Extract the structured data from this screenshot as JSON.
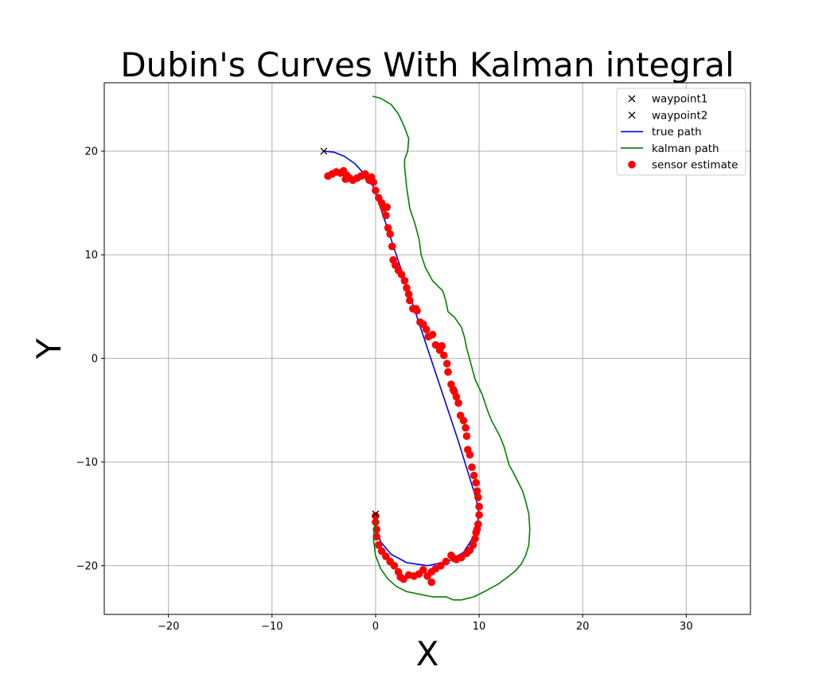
{
  "chart_data": {
    "type": "line",
    "title": "Dubin's Curves With Kalman integral",
    "xlabel": "X",
    "ylabel": "Y",
    "xlim": [
      -26.2,
      36.2
    ],
    "ylim": [
      -24.7,
      26.6
    ],
    "xticks": [
      -20,
      -10,
      0,
      10,
      20,
      30
    ],
    "yticks": [
      -20,
      -10,
      0,
      10,
      20
    ],
    "xtick_labels": [
      "−20",
      "−10",
      "0",
      "10",
      "20",
      "30"
    ],
    "ytick_labels": [
      "−20",
      "−10",
      "0",
      "10",
      "20"
    ],
    "grid": true,
    "legend_position": "top-right",
    "colors": {
      "waypoint": "#000000",
      "true_path": "#0000ff",
      "kalman_path": "#008000",
      "sensor": "#ff0000",
      "grid": "#b0b0b0"
    },
    "legend": [
      {
        "label": "waypoint1",
        "marker": "x"
      },
      {
        "label": "waypoint2",
        "marker": "x"
      },
      {
        "label": "true path",
        "marker": "line-blue"
      },
      {
        "label": "kalman path",
        "marker": "line-green"
      },
      {
        "label": "sensor estimate",
        "marker": "dot-red"
      }
    ],
    "waypoint1": [
      -5,
      20
    ],
    "waypoint2": [
      0,
      -15
    ],
    "true_path": [
      [
        -5,
        20
      ],
      [
        -4,
        19.9
      ],
      [
        -3,
        19.5
      ],
      [
        -2,
        18.8
      ],
      [
        -1,
        17.7
      ],
      [
        -0.3,
        16.8
      ],
      [
        0.5,
        14.5
      ],
      [
        2,
        10
      ],
      [
        4,
        4
      ],
      [
        6,
        -2
      ],
      [
        8,
        -8
      ],
      [
        9.7,
        -13.5
      ],
      [
        10,
        -15
      ],
      [
        9.6,
        -17
      ],
      [
        8.5,
        -18.7
      ],
      [
        7,
        -19.6
      ],
      [
        5,
        -20
      ],
      [
        3,
        -19.7
      ],
      [
        1.5,
        -18.9
      ],
      [
        0.5,
        -17.7
      ],
      [
        0.05,
        -16.3
      ],
      [
        0,
        -15
      ]
    ],
    "kalman_path": [
      [
        -0.3,
        25.3
      ],
      [
        0.5,
        25.1
      ],
      [
        1.5,
        24.5
      ],
      [
        2.2,
        23.6
      ],
      [
        2.8,
        22.3
      ],
      [
        3.2,
        21.2
      ],
      [
        3.1,
        20
      ],
      [
        2.8,
        19.2
      ],
      [
        2.8,
        18.5
      ],
      [
        3,
        16.5
      ],
      [
        3.3,
        14.5
      ],
      [
        3.8,
        13
      ],
      [
        4.2,
        11.5
      ],
      [
        4.4,
        10
      ],
      [
        4.8,
        8.8
      ],
      [
        5.5,
        7.5
      ],
      [
        6.5,
        6.5
      ],
      [
        6.8,
        5.5
      ],
      [
        7,
        4.5
      ],
      [
        7.6,
        4
      ],
      [
        8.3,
        3
      ],
      [
        8.6,
        2
      ],
      [
        8.8,
        1
      ],
      [
        9.2,
        -0.5
      ],
      [
        9.6,
        -2
      ],
      [
        10.3,
        -3.5
      ],
      [
        10.8,
        -5
      ],
      [
        11.2,
        -6
      ],
      [
        12,
        -7.5
      ],
      [
        12.4,
        -8.5
      ],
      [
        12.9,
        -10.3
      ],
      [
        13.3,
        -11
      ],
      [
        13.7,
        -11.8
      ],
      [
        14.2,
        -12.8
      ],
      [
        14.5,
        -13.8
      ],
      [
        14.8,
        -15
      ],
      [
        14.9,
        -16.5
      ],
      [
        14.8,
        -18
      ],
      [
        14.5,
        -19
      ],
      [
        14.1,
        -19.8
      ],
      [
        13.5,
        -20.5
      ],
      [
        12.9,
        -21
      ],
      [
        11.8,
        -21.8
      ],
      [
        10.5,
        -22.5
      ],
      [
        9.5,
        -23
      ],
      [
        8.3,
        -23.3
      ],
      [
        7.5,
        -23.3
      ],
      [
        6.8,
        -23
      ],
      [
        5.5,
        -23
      ],
      [
        4.5,
        -22.8
      ],
      [
        3,
        -22.5
      ],
      [
        2,
        -22
      ],
      [
        1.2,
        -21.3
      ],
      [
        0.5,
        -20.3
      ],
      [
        0,
        -19
      ],
      [
        -0.2,
        -17.5
      ],
      [
        -0.1,
        -16.3
      ],
      [
        0.1,
        -15.6
      ]
    ],
    "sensor_estimate": [
      [
        -4.6,
        17.6
      ],
      [
        -4.2,
        17.8
      ],
      [
        -3.8,
        18
      ],
      [
        -3.4,
        17.9
      ],
      [
        -3.1,
        18.1
      ],
      [
        -2.8,
        17.7
      ],
      [
        -2.5,
        17.4
      ],
      [
        -2.2,
        17.2
      ],
      [
        -1.8,
        17.4
      ],
      [
        -1.4,
        17.6
      ],
      [
        -1,
        17.8
      ],
      [
        -0.7,
        17.4
      ],
      [
        -0.4,
        17.5
      ],
      [
        -0.2,
        17
      ],
      [
        0,
        16.2
      ],
      [
        0.3,
        15.5
      ],
      [
        0.6,
        15
      ],
      [
        0.8,
        14.5
      ],
      [
        1,
        13.8
      ],
      [
        1.2,
        12.6
      ],
      [
        1.4,
        12
      ],
      [
        1.6,
        10.8
      ],
      [
        1.7,
        9.5
      ],
      [
        1.9,
        9
      ],
      [
        2.2,
        8.5
      ],
      [
        2.5,
        8.1
      ],
      [
        2.8,
        7.5
      ],
      [
        3,
        6.8
      ],
      [
        3.2,
        6.2
      ],
      [
        3.3,
        5.6
      ],
      [
        3.6,
        4.8
      ],
      [
        4,
        4.6
      ],
      [
        4.3,
        3.5
      ],
      [
        4.6,
        3.3
      ],
      [
        4.9,
        2.8
      ],
      [
        5.1,
        2.1
      ],
      [
        5.5,
        2.3
      ],
      [
        5.8,
        1.3
      ],
      [
        6.2,
        0.8
      ],
      [
        6.6,
        0.3
      ],
      [
        6.9,
        -0.5
      ],
      [
        7,
        -1.3
      ],
      [
        7.3,
        -2.5
      ],
      [
        7.5,
        -3
      ],
      [
        7.8,
        -3.7
      ],
      [
        8,
        -4.3
      ],
      [
        8.2,
        -5.5
      ],
      [
        8.5,
        -6
      ],
      [
        8.7,
        -6.7
      ],
      [
        8.8,
        -7.5
      ],
      [
        8.9,
        -8.8
      ],
      [
        9.1,
        -9.3
      ],
      [
        9.3,
        -10.5
      ],
      [
        9.5,
        -11.3
      ],
      [
        9.7,
        -12
      ],
      [
        9.8,
        -12.8
      ],
      [
        9.9,
        -13.4
      ],
      [
        10,
        -14.3
      ],
      [
        10,
        -15.1
      ],
      [
        9.9,
        -16
      ],
      [
        9.8,
        -16.5
      ],
      [
        9.6,
        -17.4
      ],
      [
        9.4,
        -18
      ],
      [
        9.1,
        -18.5
      ],
      [
        8.8,
        -18.8
      ],
      [
        8.3,
        -19.2
      ],
      [
        7.8,
        -19.4
      ],
      [
        7.3,
        -19
      ],
      [
        6.8,
        -19.6
      ],
      [
        6.3,
        -20
      ],
      [
        5.8,
        -20.3
      ],
      [
        5.4,
        -20.6
      ],
      [
        5,
        -21
      ],
      [
        4.6,
        -20.4
      ],
      [
        4.2,
        -20.8
      ],
      [
        3.7,
        -21
      ],
      [
        3.2,
        -20.9
      ],
      [
        2.7,
        -21.3
      ],
      [
        2.2,
        -20.6
      ],
      [
        1.8,
        -20
      ],
      [
        1.4,
        -19.6
      ],
      [
        1,
        -19.1
      ],
      [
        0.6,
        -18.6
      ],
      [
        0.3,
        -18
      ],
      [
        0.1,
        -17.2
      ],
      [
        0.1,
        -16.5
      ],
      [
        0,
        -15.8
      ],
      [
        0,
        -15.2
      ],
      [
        5.4,
        -21.6
      ],
      [
        2.4,
        -21.1
      ],
      [
        -2.9,
        17.3
      ],
      [
        -0.6,
        17.2
      ],
      [
        1.1,
        14.6
      ],
      [
        3.9,
        4.8
      ],
      [
        6.4,
        1.2
      ],
      [
        7.6,
        -3.2
      ],
      [
        9.7,
        -16.8
      ],
      [
        7.6,
        -19.3
      ]
    ]
  }
}
